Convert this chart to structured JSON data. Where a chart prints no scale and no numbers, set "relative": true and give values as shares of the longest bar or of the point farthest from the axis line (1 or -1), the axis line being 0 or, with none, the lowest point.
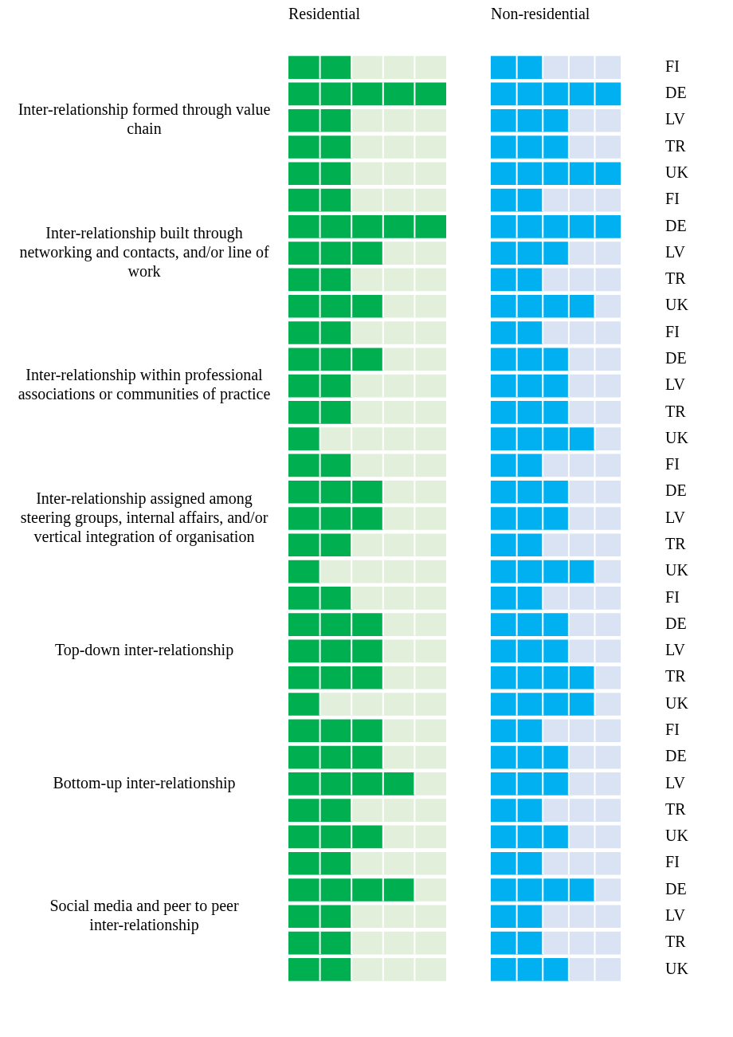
{
  "chart_data": [
    {
      "type": "bar",
      "title": "Residential",
      "orientation": "horizontal",
      "stacked": true,
      "relative": true,
      "legend": false,
      "grid": false,
      "tick_labels": false,
      "categories": [
        null,
        null,
        null,
        null,
        null,
        null,
        null,
        null,
        null,
        null,
        null,
        null,
        null,
        null,
        null,
        null,
        null,
        null,
        null,
        null,
        null,
        null,
        null,
        null,
        null,
        null,
        null,
        null,
        null,
        null,
        null,
        null,
        null,
        null,
        null
      ],
      "annotations": [
        "Inter-relationship formed through value chain",
        "Inter-relationship built through networking and contacts, and/or line of work",
        "Inter-relationship within professional associations or communities of practice",
        "Inter-relationship assigned among steering groups, internal affairs, and/or vertical integration of organisation",
        "Top-down inter-relationship",
        "Bottom-up inter-relationship",
        "Social media and peer to peer inter-relationship"
      ],
      "series": [
        {
          "color": "#00b050",
          "values": [
            0.4,
            1,
            0.4,
            0.4,
            0.4,
            0.4,
            1,
            0.6,
            0.4,
            0.6,
            0.4,
            0.6,
            0.4,
            0.4,
            0.2,
            0.4,
            0.6,
            0.6,
            0.4,
            0.2,
            0.4,
            0.6,
            0.6,
            0.6,
            0.2,
            0.6,
            0.6,
            0.8,
            0.4,
            0.6,
            0.4,
            0.8,
            0.4,
            0.4,
            0.4
          ]
        },
        {
          "color": "#e2efda",
          "values": [
            0.6,
            0,
            0.6,
            0.6,
            0.6,
            0.6,
            0,
            0.4,
            0.6,
            0.4,
            0.6,
            0.4,
            0.6,
            0.6,
            0.8,
            0.6,
            0.4,
            0.4,
            0.6,
            0.8,
            0.6,
            0.4,
            0.4,
            0.4,
            0.8,
            0.4,
            0.4,
            0.2,
            0.6,
            0.4,
            0.6,
            0.2,
            0.6,
            0.6,
            0.6
          ]
        }
      ]
    },
    {
      "type": "bar",
      "title": "Non-residential",
      "orientation": "horizontal",
      "stacked": true,
      "relative": true,
      "legend": false,
      "grid": false,
      "tick_labels": "y",
      "categories": [
        "FI",
        "DE",
        "LV",
        "TR",
        "UK",
        "FI",
        "DE",
        "LV",
        "TR",
        "UK",
        "FI",
        "DE",
        "LV",
        "TR",
        "UK",
        "FI",
        "DE",
        "LV",
        "TR",
        "UK",
        "FI",
        "DE",
        "LV",
        "TR",
        "UK",
        "FI",
        "DE",
        "LV",
        "TR",
        "UK",
        "FI",
        "DE",
        "LV",
        "TR",
        "UK"
      ],
      "series": [
        {
          "color": "#00b0f0",
          "values": [
            0.4,
            1,
            0.6,
            0.6,
            1,
            0.4,
            1,
            0.6,
            0.4,
            0.8,
            0.4,
            0.6,
            0.6,
            0.6,
            0.8,
            0.4,
            0.6,
            0.6,
            0.4,
            0.8,
            0.4,
            0.6,
            0.6,
            0.8,
            0.8,
            0.4,
            0.6,
            0.6,
            0.4,
            0.6,
            0.4,
            0.8,
            0.4,
            0.4,
            0.6
          ]
        },
        {
          "color": "#dae3f3",
          "values": [
            0.6,
            0,
            0.4,
            0.4,
            0,
            0.6,
            0,
            0.4,
            0.6,
            0.2,
            0.6,
            0.4,
            0.4,
            0.4,
            0.2,
            0.6,
            0.4,
            0.4,
            0.6,
            0.2,
            0.6,
            0.4,
            0.4,
            0.2,
            0.2,
            0.6,
            0.4,
            0.4,
            0.6,
            0.4,
            0.6,
            0.2,
            0.6,
            0.6,
            0.4
          ]
        }
      ]
    }
  ]
}
